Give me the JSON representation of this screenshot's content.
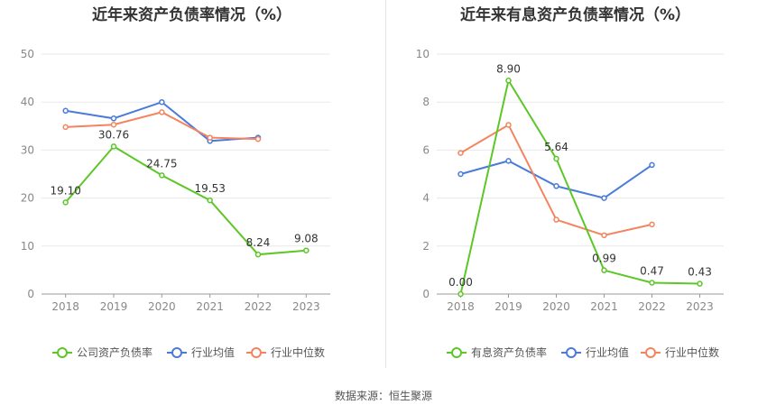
{
  "source_text": "数据来源：恒生聚源",
  "chart_data": [
    {
      "type": "line",
      "title": "近年来资产负债率情况（%）",
      "categories": [
        "2018",
        "2019",
        "2020",
        "2021",
        "2022",
        "2023"
      ],
      "ylim": [
        0,
        50
      ],
      "yticks": [
        0,
        10,
        20,
        30,
        40,
        50
      ],
      "grid": true,
      "legend_position": "bottom",
      "series": [
        {
          "name": "公司资产负债率",
          "color": "#5cc726",
          "values": [
            19.1,
            30.76,
            24.75,
            19.53,
            8.24,
            9.08
          ],
          "labels": [
            "19.10",
            "30.76",
            "24.75",
            "19.53",
            "8.24",
            "9.08"
          ]
        },
        {
          "name": "行业均值",
          "color": "#4a7bd9",
          "values": [
            38.2,
            36.6,
            40.0,
            31.9,
            32.6,
            null
          ]
        },
        {
          "name": "行业中位数",
          "color": "#f4845f",
          "values": [
            34.8,
            35.3,
            37.9,
            32.6,
            32.3,
            null
          ]
        }
      ]
    },
    {
      "type": "line",
      "title": "近年来有息资产负债率情况（%）",
      "categories": [
        "2018",
        "2019",
        "2020",
        "2021",
        "2022",
        "2023"
      ],
      "ylim": [
        0,
        10
      ],
      "yticks": [
        0,
        2,
        4,
        6,
        8,
        10
      ],
      "grid": true,
      "legend_position": "bottom",
      "series": [
        {
          "name": "有息资产负债率",
          "color": "#5cc726",
          "values": [
            0.0,
            8.9,
            5.64,
            0.99,
            0.47,
            0.43
          ],
          "labels": [
            "0.00",
            "8.90",
            "5.64",
            "0.99",
            "0.47",
            "0.43"
          ]
        },
        {
          "name": "行业均值",
          "color": "#4a7bd9",
          "values": [
            5.0,
            5.55,
            4.5,
            4.0,
            5.38,
            null
          ]
        },
        {
          "name": "行业中位数",
          "color": "#f4845f",
          "values": [
            5.88,
            7.05,
            3.1,
            2.45,
            2.9,
            null
          ]
        }
      ]
    }
  ]
}
